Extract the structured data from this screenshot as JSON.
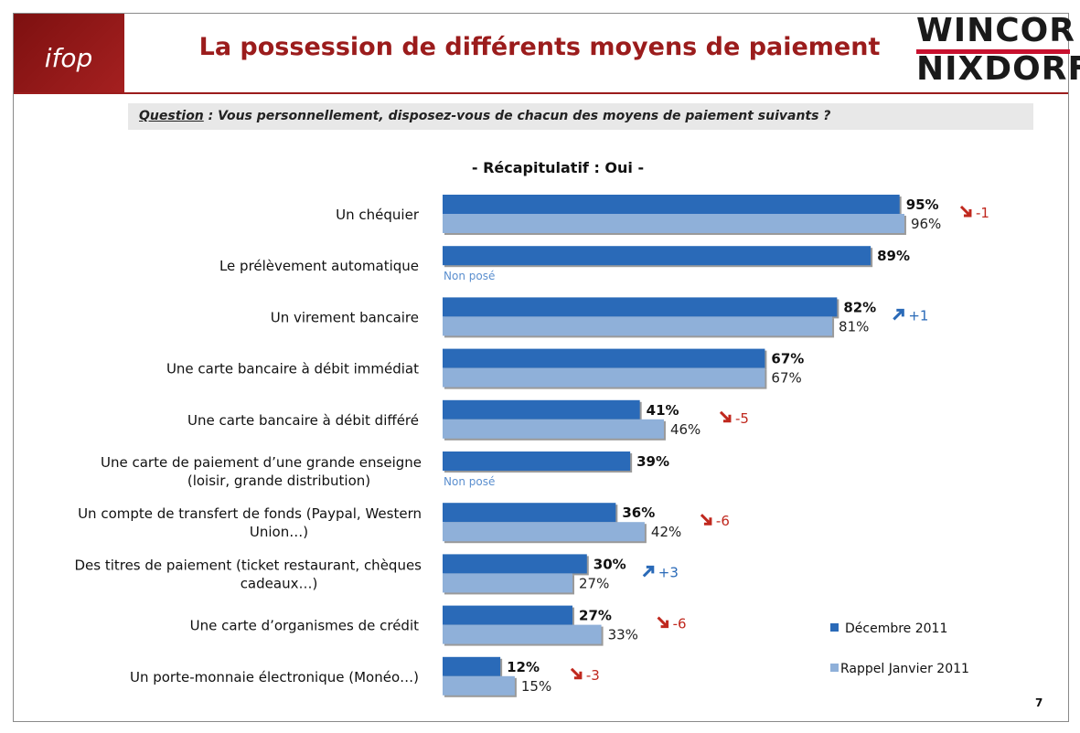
{
  "header": {
    "title": "La possession de différents moyens de paiement",
    "ifop_logo_text": "ifop",
    "partner_logo": {
      "line1": "WINCOR",
      "line2": "NIXDORF"
    }
  },
  "question": {
    "label": "Question",
    "text": " : Vous personnellement, disposez-vous de chacun des moyens de paiement suivants ?"
  },
  "subtitle": "- Récapitulatif : Oui -",
  "page_number": "7",
  "colors": {
    "dec": "#2a6ab8",
    "jan": "#8fb0d9",
    "down": "#c0281e",
    "up": "#2a6ab8",
    "title": "#9b1c1c"
  },
  "chart_data": {
    "type": "bar",
    "orientation": "horizontal",
    "title": "- Récapitulatif : Oui -",
    "xlim": [
      0,
      100
    ],
    "legend_position": "bottom-right",
    "not_asked_label": "Non posé",
    "categories": [
      [
        "Un chéquier"
      ],
      [
        "Le prélèvement automatique"
      ],
      [
        "Un virement bancaire"
      ],
      [
        "Une carte bancaire à débit immédiat"
      ],
      [
        "Une carte bancaire à débit différé"
      ],
      [
        "Une carte de paiement d’une grande enseigne",
        "(loisir, grande distribution)"
      ],
      [
        "Un compte de transfert de fonds (Paypal, Western",
        "Union…)"
      ],
      [
        "Des titres de paiement (ticket restaurant, chèques",
        "cadeaux…)"
      ],
      [
        "Une carte d’organismes de crédit"
      ],
      [
        "Un porte-monnaie électronique (Monéo…)"
      ]
    ],
    "series": [
      {
        "name": "Décembre 2011",
        "values": [
          95,
          89,
          82,
          67,
          41,
          39,
          36,
          30,
          27,
          12
        ],
        "labels": [
          "95%",
          "89%",
          "82%",
          "67%",
          "41%",
          "39%",
          "36%",
          "30%",
          "27%",
          "12%"
        ]
      },
      {
        "name": "Rappel Janvier 2011",
        "values": [
          96,
          null,
          81,
          67,
          46,
          null,
          42,
          27,
          33,
          15
        ],
        "labels": [
          "96%",
          null,
          "81%",
          "67%",
          "46%",
          null,
          "42%",
          "27%",
          "33%",
          "15%"
        ]
      }
    ],
    "changes": [
      {
        "direction": "down",
        "text": "-1"
      },
      null,
      {
        "direction": "up",
        "text": "+1"
      },
      null,
      {
        "direction": "down",
        "text": "-5"
      },
      null,
      {
        "direction": "down",
        "text": "-6"
      },
      {
        "direction": "up",
        "text": "+3"
      },
      {
        "direction": "down",
        "text": "-6"
      },
      {
        "direction": "down",
        "text": "-3"
      }
    ]
  }
}
